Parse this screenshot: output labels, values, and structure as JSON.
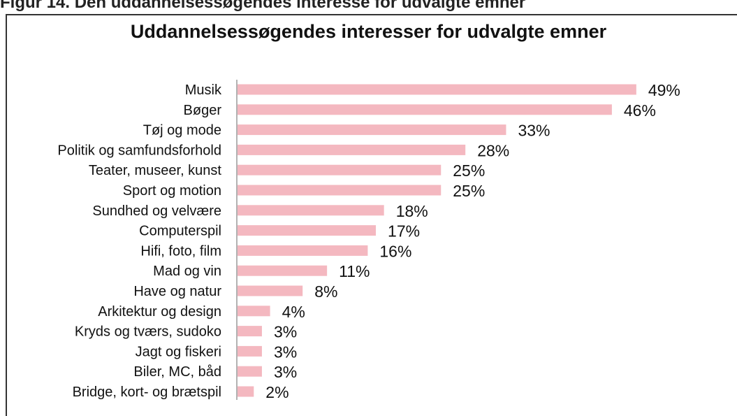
{
  "figure_caption": "Figur 14. Den uddannelsessøgendes interesse for udvalgte emner",
  "chart_data": {
    "type": "bar",
    "orientation": "horizontal",
    "title": "Uddannelsessøgendes interesser for udvalgte emner",
    "xlabel": "",
    "ylabel": "",
    "grid": false,
    "bar_color": "#f4b8c0",
    "categories": [
      "Musik",
      "Bøger",
      "Tøj og mode",
      "Politik og samfundsforhold",
      "Teater, museer, kunst",
      "Sport og motion",
      "Sundhed og velvære",
      "Computerspil",
      "Hifi, foto, film",
      "Mad og vin",
      "Have og natur",
      "Arkitektur og design",
      "Kryds og tværs, sudoko",
      "Jagt og fiskeri",
      "Biler, MC, båd",
      "Bridge, kort- og brætspil"
    ],
    "values": [
      49,
      46,
      33,
      28,
      25,
      25,
      18,
      17,
      16,
      11,
      8,
      4,
      3,
      3,
      3,
      2
    ],
    "value_labels": [
      "49%",
      "46%",
      "33%",
      "28%",
      "25%",
      "25%",
      "18%",
      "17%",
      "16%",
      "11%",
      "8%",
      "4%",
      "3%",
      "3%",
      "3%",
      "2%"
    ]
  }
}
